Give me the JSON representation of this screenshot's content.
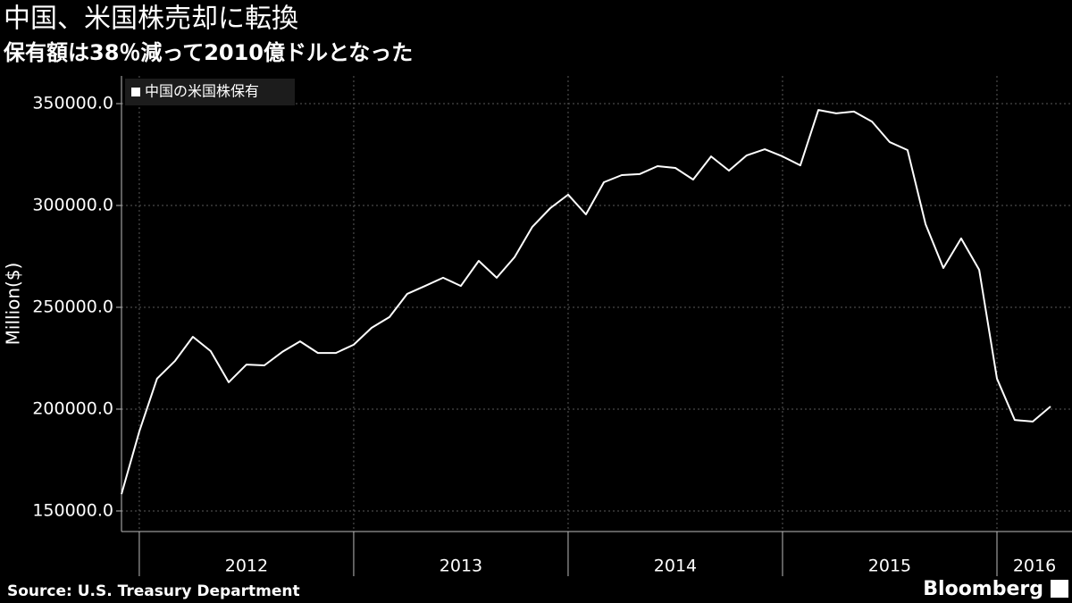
{
  "chart_data": {
    "type": "line",
    "title": "中国、米国株売却に転換",
    "subtitle": "保有額は38％減って2010億ドルとなった",
    "y_label": "Million($)",
    "source": "Source: U.S. Treasury Department",
    "brand": "Bloomberg",
    "x": [
      2011.917,
      2012,
      2012.083,
      2012.167,
      2012.25,
      2012.333,
      2012.417,
      2012.5,
      2012.583,
      2012.667,
      2012.75,
      2012.833,
      2012.917,
      2013,
      2013.083,
      2013.167,
      2013.25,
      2013.333,
      2013.417,
      2013.5,
      2013.583,
      2013.667,
      2013.75,
      2013.833,
      2013.917,
      2014,
      2014.083,
      2014.167,
      2014.25,
      2014.333,
      2014.417,
      2014.5,
      2014.583,
      2014.667,
      2014.75,
      2014.833,
      2014.917,
      2015,
      2015.083,
      2015.167,
      2015.25,
      2015.333,
      2015.417,
      2015.5,
      2015.583,
      2015.667,
      2015.75,
      2015.833,
      2015.917,
      2016,
      2016.083,
      2016.167,
      2016.25
    ],
    "series": [
      {
        "name": "中国の米国株保有",
        "color": "#ffffff",
        "values": [
          158300,
          189000,
          215000,
          223700,
          235500,
          228500,
          213200,
          221900,
          221500,
          228100,
          233300,
          227600,
          227600,
          231600,
          239900,
          245200,
          256600,
          260500,
          264500,
          260500,
          272800,
          264500,
          274600,
          289500,
          298700,
          305300,
          295600,
          311400,
          314900,
          315400,
          319300,
          318400,
          312700,
          324100,
          317100,
          324600,
          327600,
          324100,
          319700,
          346900,
          345200,
          346100,
          341200,
          331100,
          327200,
          290800,
          269300,
          283800,
          268400,
          215000,
          194700,
          193900,
          201300
        ]
      }
    ],
    "xlim": [
      2011.917,
      2016.35
    ],
    "xticks": [
      {
        "value": 2012.5,
        "label": "2012"
      },
      {
        "value": 2013.5,
        "label": "2013"
      },
      {
        "value": 2014.5,
        "label": "2014"
      },
      {
        "value": 2015.5,
        "label": "2015"
      },
      {
        "value": 2016.175,
        "label": "2016"
      }
    ],
    "ylim": [
      139900,
      363600
    ],
    "yticks": [
      {
        "value": 150000,
        "label": "150000.0"
      },
      {
        "value": 200000,
        "label": "200000.0"
      },
      {
        "value": 250000,
        "label": "250000.0"
      },
      {
        "value": 300000,
        "label": "300000.0"
      },
      {
        "value": 350000,
        "label": "350000.0"
      }
    ],
    "grid": true,
    "legend": "top-left"
  }
}
